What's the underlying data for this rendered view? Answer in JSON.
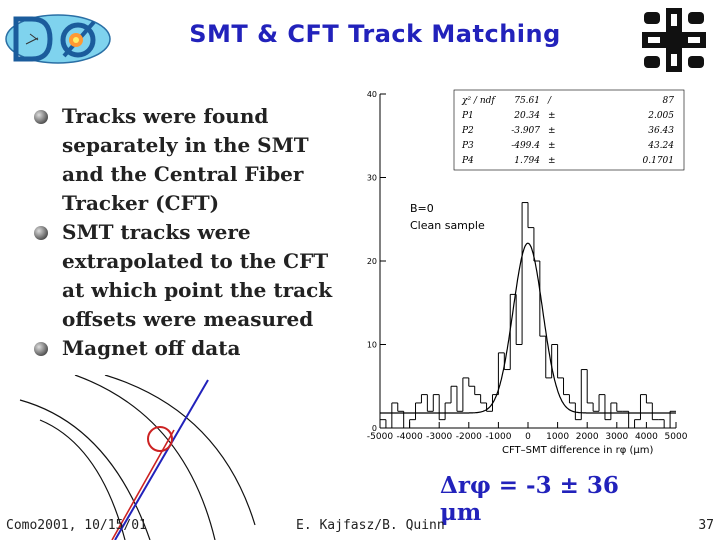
{
  "slide": {
    "title": "SMT & CFT Track Matching",
    "bullets": [
      "Tracks were found separately in the SMT and the Central Fiber Tracker (CFT)",
      "SMT tracks were extrapolated to the CFT at which point the track offsets were measured",
      "Magnet off data"
    ],
    "result": "Δrφ = -3 ± 36 μm",
    "footer": {
      "left": "Como2001, 10/15/01",
      "center": "E. Kajfasz/B. Quinn",
      "page": "37"
    }
  },
  "colors": {
    "title": "#2222bb",
    "track": "#2222bb",
    "highlight": "#cc2222"
  },
  "icons": [
    "d0-logo-icon",
    "fermilab-logo-icon"
  ],
  "chart_data": {
    "type": "histogram",
    "xlabel": "CFT–SMT difference in rφ (μm)",
    "ylabel": "",
    "xlim": [
      -5000,
      5000
    ],
    "ylim": [
      0,
      40
    ],
    "x_ticks": [
      -5000,
      -4000,
      -3000,
      -2000,
      -1000,
      0,
      1000,
      2000,
      3000,
      4000,
      5000
    ],
    "y_ticks": [
      0,
      10,
      20,
      30,
      40
    ],
    "annotations": [
      "B=0",
      "Clean sample"
    ],
    "fit_stats": [
      {
        "name": "χ² / ndf",
        "value": "75.61",
        "error": "87",
        "sep": "/"
      },
      {
        "name": "P1",
        "value": "20.34",
        "error": "2.005",
        "sep": "±"
      },
      {
        "name": "P2",
        "value": "-3.907",
        "error": "36.43",
        "sep": "±"
      },
      {
        "name": "P3",
        "value": "-499.4",
        "error": "43.24",
        "sep": "±"
      },
      {
        "name": "P4",
        "value": "1.794",
        "error": "0.1701",
        "sep": "±"
      }
    ],
    "bin_width": 200,
    "bin_centers": [
      -4900,
      -4700,
      -4500,
      -4300,
      -4100,
      -3900,
      -3700,
      -3500,
      -3300,
      -3100,
      -2900,
      -2700,
      -2500,
      -2300,
      -2100,
      -1900,
      -1700,
      -1500,
      -1300,
      -1100,
      -900,
      -700,
      -500,
      -300,
      -100,
      100,
      300,
      500,
      700,
      900,
      1100,
      1300,
      1500,
      1700,
      1900,
      2100,
      2300,
      2500,
      2700,
      2900,
      3100,
      3300,
      3500,
      3700,
      3900,
      4100,
      4300,
      4500,
      4700,
      4900
    ],
    "counts": [
      1,
      0,
      3,
      2,
      0,
      1,
      3,
      4,
      2,
      4,
      1,
      3,
      5,
      2,
      6,
      5,
      4,
      3,
      2,
      4,
      9,
      7,
      16,
      10,
      27,
      24,
      20,
      11,
      6,
      10,
      6,
      4,
      3,
      1,
      7,
      3,
      2,
      4,
      1,
      3,
      2,
      2,
      0,
      1,
      4,
      3,
      1,
      1,
      0,
      2
    ]
  }
}
